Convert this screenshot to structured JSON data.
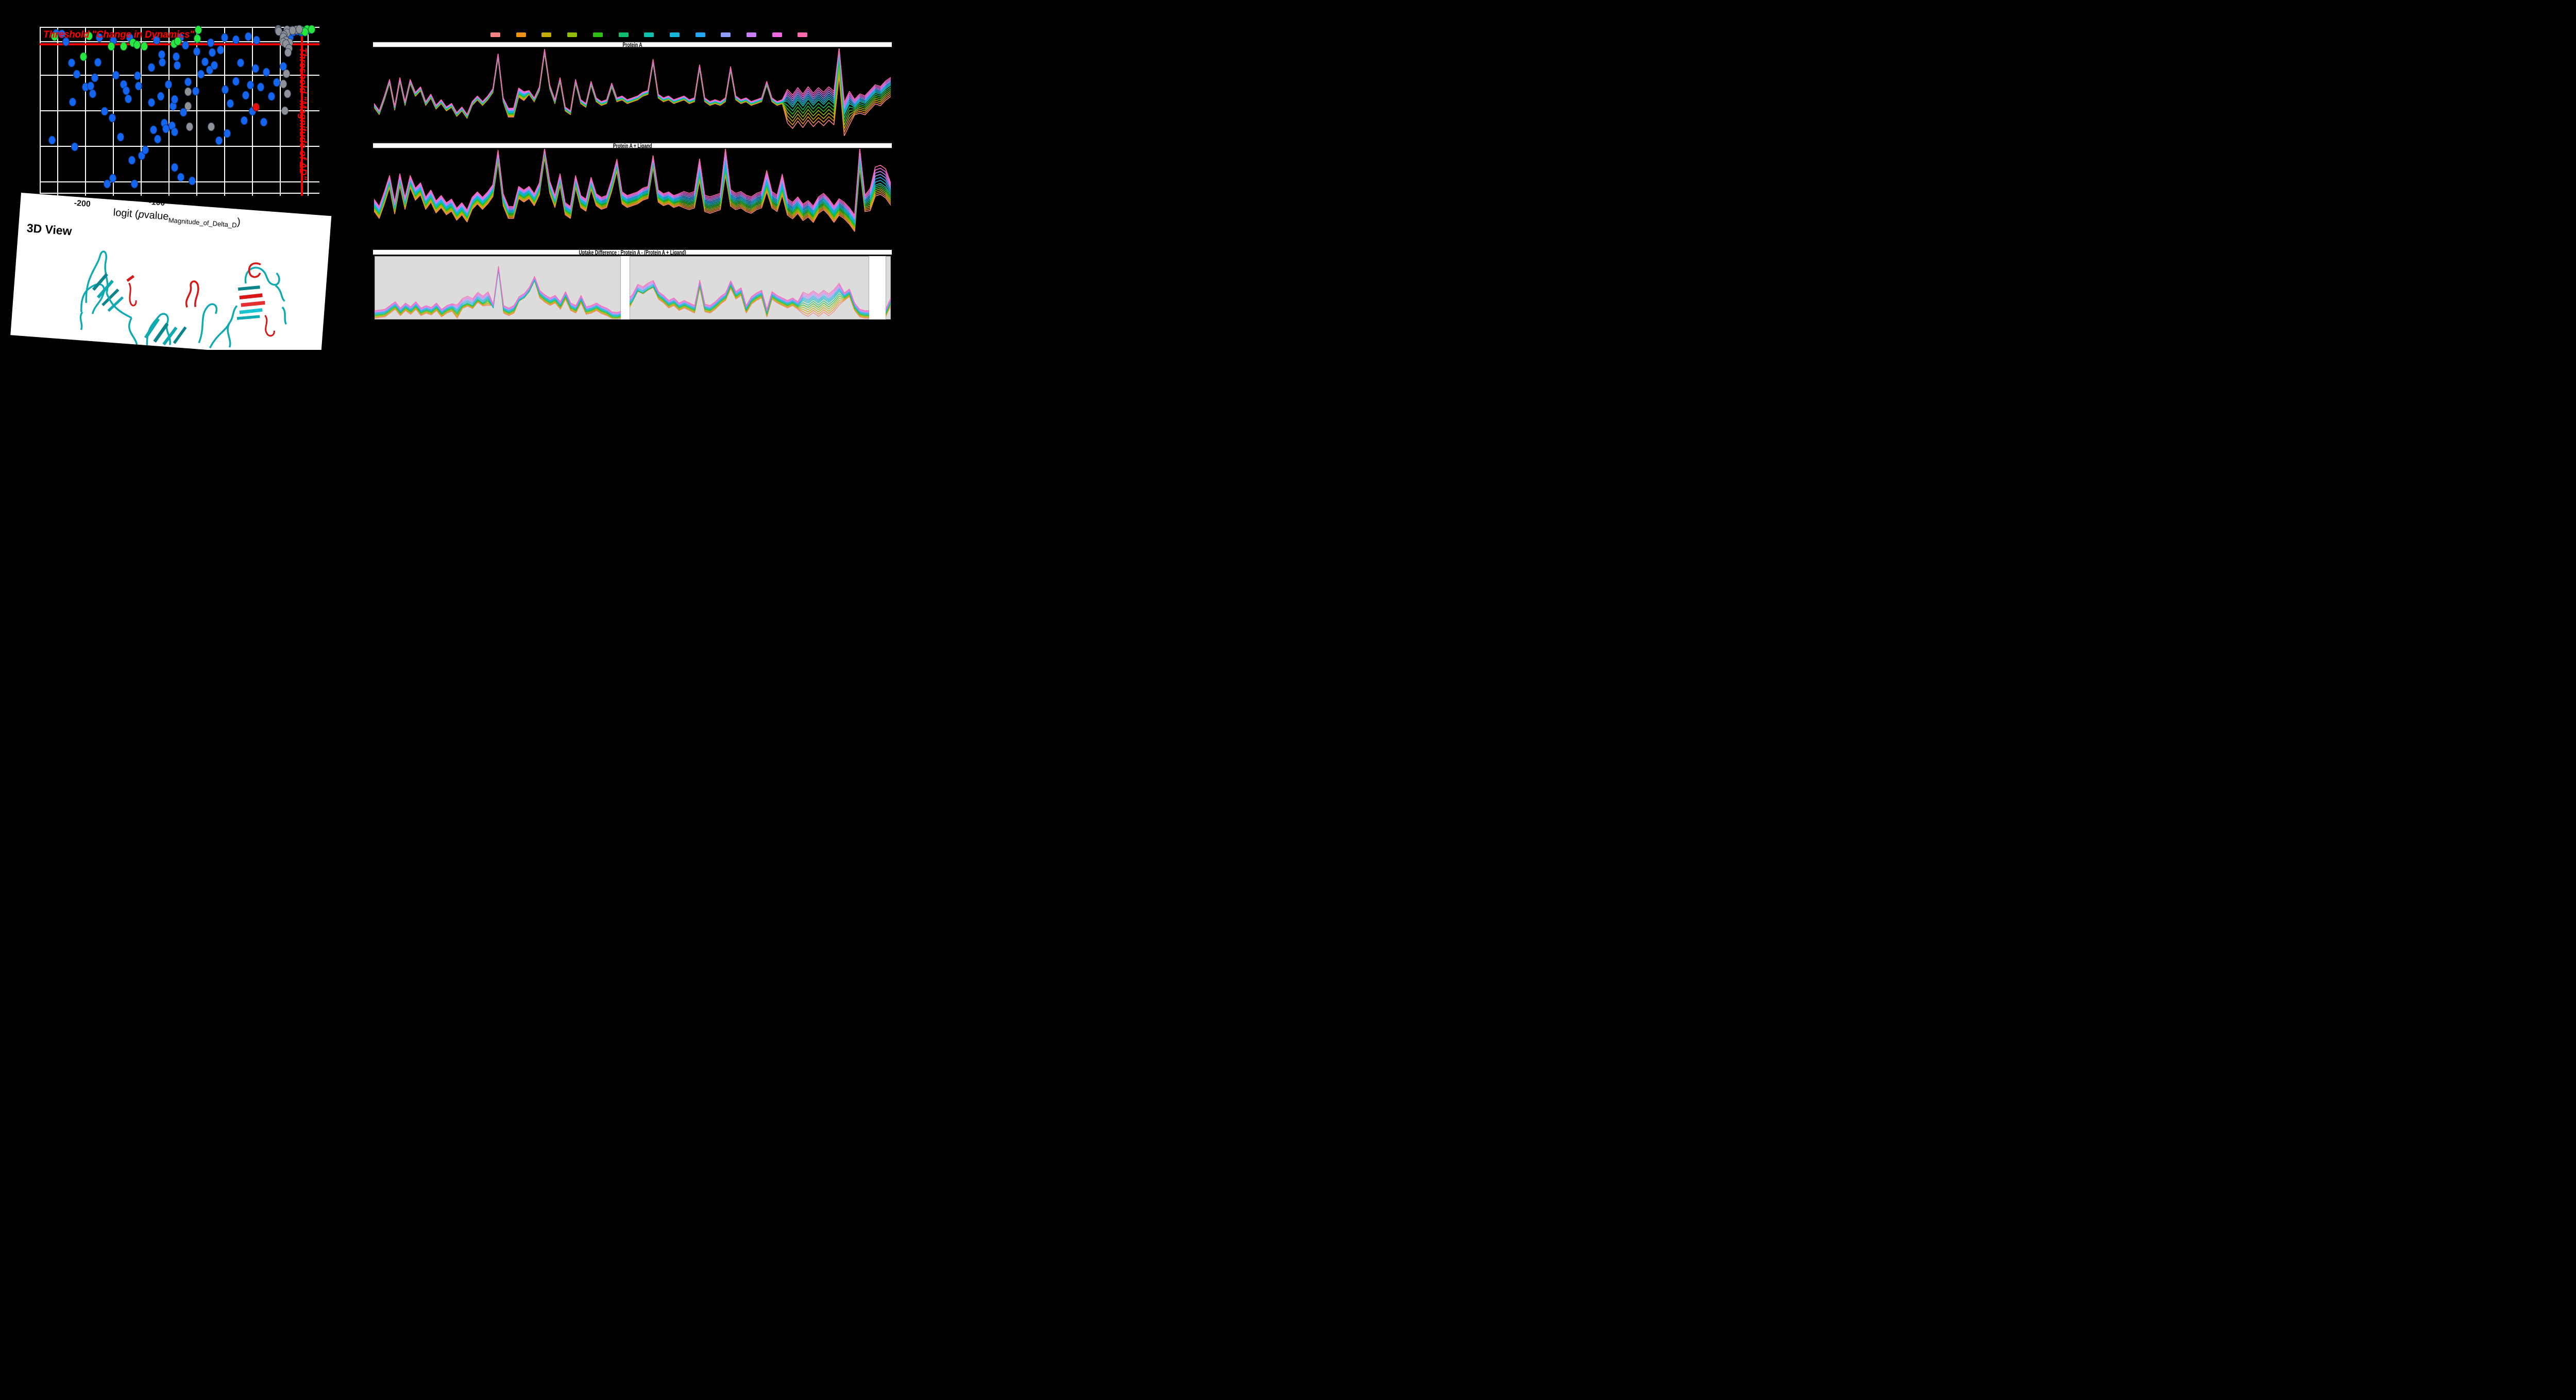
{
  "window": {
    "background": "#000000"
  },
  "card_3d": {
    "heading": "3D View",
    "structure_colors": {
      "ribbon": "#0FA9B2",
      "ribbon_dark": "#0B858C",
      "ribbon_light": "#19C3CF",
      "highlight": "#D81717"
    }
  },
  "legend": {
    "swatch_colors": [
      "#F2827F",
      "#EC9214",
      "#C3A909",
      "#93BD0D",
      "#2EC016",
      "#12BD70",
      "#0FBFAD",
      "#16B8D9",
      "#23A7F2",
      "#8E9FF7",
      "#C780F5",
      "#EF68E0",
      "#F969AE"
    ]
  },
  "chart_data": [
    {
      "id": "volcano",
      "type": "scatter",
      "xlabel_parts": {
        "pre": "logit (",
        "p": "p",
        "value": "value",
        "sub": "Magnitude_of_Delta_D",
        "post": ")"
      },
      "x_tick_labels": [
        "-200",
        "-100"
      ],
      "annotations": [
        {
          "text": "Threshold \"Change in Dynamics\"",
          "orientation": "horizontal"
        },
        {
          "text": "Threshold \"Magnitude of ΔD\"",
          "orientation": "vertical"
        }
      ],
      "threshold_color": "#FF0000",
      "grid_color": "#FFFFFF",
      "plot_background": "#000000",
      "red_hline_y": 0.101,
      "red_vline_x": 0.938,
      "grid_x": [
        0.061,
        0.161,
        0.261,
        0.361,
        0.461,
        0.56,
        0.66,
        0.76,
        0.86,
        0.96
      ],
      "grid_y": [
        0.084,
        0.286,
        0.502,
        0.718,
        0.934
      ],
      "note": "point coords are fractions of the plot area, x left-to-right, y top-to-bottom",
      "series": [
        {
          "name": "blue",
          "color": "#1465F0",
          "points": [
            [
              0.056,
              0.033
            ],
            [
              0.075,
              0.038
            ],
            [
              0.09,
              0.083
            ],
            [
              0.041,
              0.68
            ],
            [
              0.115,
              0.451
            ],
            [
              0.122,
              0.721
            ],
            [
              0.11,
              0.212
            ],
            [
              0.13,
              0.28
            ],
            [
              0.16,
              0.359
            ],
            [
              0.179,
              0.352
            ],
            [
              0.187,
              0.4
            ],
            [
              0.195,
              0.304
            ],
            [
              0.206,
              0.208
            ],
            [
              0.21,
              0.06
            ],
            [
              0.23,
              0.505
            ],
            [
              0.239,
              0.948
            ],
            [
              0.257,
              0.547
            ],
            [
              0.259,
              0.913
            ],
            [
              0.26,
              0.078
            ],
            [
              0.269,
              0.289
            ],
            [
              0.286,
              0.662
            ],
            [
              0.298,
              0.344
            ],
            [
              0.306,
              0.38
            ],
            [
              0.314,
              0.431
            ],
            [
              0.32,
              0.06
            ],
            [
              0.328,
              0.803
            ],
            [
              0.336,
              0.947
            ],
            [
              0.348,
              0.292
            ],
            [
              0.351,
              0.352
            ],
            [
              0.362,
              0.776
            ],
            [
              0.376,
              0.74
            ],
            [
              0.397,
              0.24
            ],
            [
              0.397,
              0.454
            ],
            [
              0.404,
              0.619
            ],
            [
              0.415,
              0.075
            ],
            [
              0.42,
              0.676
            ],
            [
              0.43,
              0.416
            ],
            [
              0.434,
              0.164
            ],
            [
              0.436,
              0.208
            ],
            [
              0.443,
              0.578
            ],
            [
              0.45,
              0.612
            ],
            [
              0.459,
              0.344
            ],
            [
              0.471,
              0.593
            ],
            [
              0.475,
              0.476
            ],
            [
              0.481,
              0.434
            ],
            [
              0.481,
              0.632
            ],
            [
              0.481,
              0.846
            ],
            [
              0.487,
              0.176
            ],
            [
              0.49,
              0.228
            ],
            [
              0.5,
              0.059
            ],
            [
              0.502,
              0.907
            ],
            [
              0.512,
              0.512
            ],
            [
              0.52,
              0.106
            ],
            [
              0.529,
              0.328
            ],
            [
              0.544,
              0.927
            ],
            [
              0.557,
              0.384
            ],
            [
              0.56,
              0.145
            ],
            [
              0.574,
              0.281
            ],
            [
              0.59,
              0.207
            ],
            [
              0.607,
              0.256
            ],
            [
              0.61,
              0.09
            ],
            [
              0.615,
              0.15
            ],
            [
              0.623,
              0.228
            ],
            [
              0.64,
              0.685
            ],
            [
              0.645,
              0.134
            ],
            [
              0.66,
              0.06
            ],
            [
              0.662,
              0.375
            ],
            [
              0.67,
              0.64
            ],
            [
              0.68,
              0.46
            ],
            [
              0.7,
              0.073
            ],
            [
              0.7,
              0.325
            ],
            [
              0.718,
              0.212
            ],
            [
              0.73,
              0.561
            ],
            [
              0.735,
              0.409
            ],
            [
              0.745,
              0.054
            ],
            [
              0.752,
              0.347
            ],
            [
              0.76,
              0.505
            ],
            [
              0.77,
              0.246
            ],
            [
              0.775,
              0.075
            ],
            [
              0.79,
              0.359
            ],
            [
              0.8,
              0.572
            ],
            [
              0.81,
              0.269
            ],
            [
              0.828,
              0.415
            ],
            [
              0.846,
              0.331
            ],
            [
              0.87,
              0.235
            ],
            [
              0.895,
              0.059
            ],
            [
              0.905,
              0.024
            ],
            [
              0.92,
              0.018
            ],
            [
              0.935,
              0.026
            ],
            [
              0.945,
              0.02
            ],
            [
              0.96,
              0.014
            ]
          ]
        },
        {
          "name": "green",
          "color": "#27E83F",
          "points": [
            [
              0.05,
              0.054
            ],
            [
              0.154,
              0.176
            ],
            [
              0.173,
              0.05
            ],
            [
              0.253,
              0.112
            ],
            [
              0.298,
              0.112
            ],
            [
              0.331,
              0.091
            ],
            [
              0.345,
              0.103
            ],
            [
              0.372,
              0.112
            ],
            [
              0.479,
              0.097
            ],
            [
              0.491,
              0.081
            ],
            [
              0.561,
              0.065
            ],
            [
              0.566,
              0.013
            ],
            [
              0.935,
              0.015
            ],
            [
              0.955,
              0.01
            ],
            [
              0.948,
              0.026
            ],
            [
              0.972,
              0.009
            ]
          ]
        },
        {
          "name": "gray",
          "color": "#8E9196",
          "points": [
            [
              0.852,
              0.009
            ],
            [
              0.852,
              0.015
            ],
            [
              0.854,
              0.021
            ],
            [
              0.883,
              0.011
            ],
            [
              0.883,
              0.031
            ],
            [
              0.872,
              0.043
            ],
            [
              0.87,
              0.056
            ],
            [
              0.88,
              0.078
            ],
            [
              0.87,
              0.089
            ],
            [
              0.893,
              0.092
            ],
            [
              0.88,
              0.097
            ],
            [
              0.891,
              0.125
            ],
            [
              0.888,
              0.15
            ],
            [
              0.881,
              0.279
            ],
            [
              0.87,
              0.34
            ],
            [
              0.885,
              0.4
            ],
            [
              0.877,
              0.502
            ],
            [
              0.529,
              0.388
            ],
            [
              0.529,
              0.476
            ],
            [
              0.535,
              0.601
            ],
            [
              0.611,
              0.601
            ],
            [
              0.916,
              0.011
            ],
            [
              0.928,
              0.008
            ],
            [
              0.904,
              0.015
            ]
          ]
        },
        {
          "name": "red",
          "color": "#E3100B",
          "points": [
            [
              0.773,
              0.481
            ]
          ]
        }
      ]
    },
    {
      "id": "uptake-protein-a",
      "type": "line",
      "title": "Protein A",
      "plot_background": "#000000",
      "x_range": [
        0,
        100
      ],
      "axes_visible": false,
      "line_width": 1.6,
      "line_opacity": 1,
      "vmin": 0.02,
      "vmax": 1.0,
      "base": [
        0.38,
        0.3,
        0.46,
        0.64,
        0.35,
        0.66,
        0.4,
        0.64,
        0.5,
        0.56,
        0.4,
        0.48,
        0.36,
        0.42,
        0.34,
        0.38,
        0.28,
        0.34,
        0.26,
        0.4,
        0.46,
        0.4,
        0.46,
        0.54,
        0.92,
        0.44,
        0.3,
        0.3,
        0.52,
        0.48,
        0.52,
        0.44,
        0.56,
        0.97,
        0.58,
        0.42,
        0.66,
        0.34,
        0.3,
        0.64,
        0.42,
        0.38,
        0.62,
        0.44,
        0.4,
        0.42,
        0.6,
        0.44,
        0.46,
        0.42,
        0.44,
        0.46,
        0.5,
        0.52,
        0.86,
        0.48,
        0.44,
        0.46,
        0.42,
        0.44,
        0.46,
        0.42,
        0.44,
        0.8,
        0.44,
        0.4,
        0.42,
        0.4,
        0.44,
        0.78,
        0.46,
        0.42,
        0.44,
        0.4,
        0.42,
        0.44,
        0.62,
        0.44,
        0.4,
        0.42,
        0.42,
        0.36,
        0.44,
        0.37,
        0.45,
        0.38,
        0.44,
        0.39,
        0.45,
        0.4,
        0.93,
        0.28,
        0.4,
        0.36,
        0.42,
        0.4,
        0.46,
        0.52,
        0.5,
        0.56,
        0.6
      ],
      "spread_default": 0.0035,
      "spread_regions": [
        [
          26,
          29,
          0.008
        ],
        [
          80,
          92,
          0.022
        ],
        [
          93,
          100,
          0.014
        ]
      ],
      "top_boost_regions": [],
      "bottom_boost_regions": [
        [
          80,
          92,
          -0.1
        ],
        [
          94,
          100,
          -0.04
        ]
      ]
    },
    {
      "id": "uptake-protein-a-ligand",
      "type": "line",
      "title": "Protein A + Ligand",
      "plot_background": "#000000",
      "x_range": [
        0,
        100
      ],
      "axes_visible": false,
      "line_width": 1.6,
      "line_opacity": 1,
      "vmin": 0.02,
      "vmax": 1.0,
      "base": [
        0.38,
        0.3,
        0.46,
        0.64,
        0.35,
        0.66,
        0.4,
        0.64,
        0.5,
        0.56,
        0.4,
        0.48,
        0.36,
        0.42,
        0.34,
        0.38,
        0.28,
        0.34,
        0.26,
        0.4,
        0.46,
        0.4,
        0.46,
        0.54,
        0.92,
        0.44,
        0.3,
        0.3,
        0.52,
        0.48,
        0.52,
        0.44,
        0.56,
        0.97,
        0.58,
        0.42,
        0.66,
        0.34,
        0.3,
        0.64,
        0.42,
        0.38,
        0.62,
        0.44,
        0.4,
        0.42,
        0.6,
        0.82,
        0.46,
        0.42,
        0.44,
        0.46,
        0.5,
        0.52,
        0.86,
        0.48,
        0.44,
        0.46,
        0.42,
        0.44,
        0.44,
        0.42,
        0.44,
        0.74,
        0.4,
        0.38,
        0.4,
        0.42,
        0.8,
        0.46,
        0.42,
        0.44,
        0.4,
        0.38,
        0.42,
        0.44,
        0.62,
        0.44,
        0.4,
        0.58,
        0.36,
        0.32,
        0.38,
        0.3,
        0.34,
        0.28,
        0.38,
        0.42,
        0.36,
        0.28,
        0.36,
        0.32,
        0.26,
        0.18,
        0.88,
        0.4,
        0.44,
        0.6,
        0.62,
        0.58,
        0.5
      ],
      "spread_default": 0.011,
      "spread_regions": [
        [
          60,
          100,
          0.015
        ],
        [
          96,
          100,
          0.02
        ]
      ],
      "top_boost_regions": [
        [
          63,
          63,
          0.06
        ],
        [
          68,
          68,
          0.16
        ],
        [
          76,
          76,
          0.05
        ],
        [
          79,
          79,
          0.05
        ],
        [
          94,
          94,
          0.1
        ],
        [
          97,
          99,
          0.08
        ]
      ],
      "bottom_boost_regions": []
    },
    {
      "id": "uptake-difference",
      "type": "line",
      "title": "Uptake Difference : Protein A - (Protein A + Ligand)",
      "plot_background": "#DCDCDC",
      "x_range": [
        0,
        100
      ],
      "axes_visible": false,
      "line_width": 1.4,
      "line_opacity": 0.8,
      "vmin": 0.02,
      "vmax": 0.98,
      "coverage_gaps": [
        [
          0.477,
          0.494
        ],
        [
          0.958,
          0.99
        ]
      ],
      "base": [
        0.08,
        0.09,
        0.1,
        0.16,
        0.22,
        0.12,
        0.2,
        0.14,
        0.22,
        0.12,
        0.16,
        0.13,
        0.2,
        0.1,
        0.16,
        0.19,
        0.12,
        0.22,
        0.26,
        0.22,
        0.32,
        0.26,
        0.33,
        0.18,
        0.78,
        0.16,
        0.12,
        0.16,
        0.3,
        0.35,
        0.45,
        0.62,
        0.4,
        0.33,
        0.28,
        0.32,
        0.22,
        0.38,
        0.2,
        0.16,
        0.32,
        0.14,
        0.16,
        0.2,
        0.15,
        0.12,
        0.06,
        0.05,
        0.08,
        0.22,
        0.3,
        0.46,
        0.42,
        0.48,
        0.52,
        0.38,
        0.32,
        0.24,
        0.28,
        0.2,
        0.24,
        0.2,
        0.16,
        0.56,
        0.18,
        0.16,
        0.22,
        0.3,
        0.36,
        0.55,
        0.38,
        0.44,
        0.16,
        0.3,
        0.36,
        0.4,
        0.1,
        0.38,
        0.32,
        0.28,
        0.24,
        0.28,
        0.22,
        0.3,
        0.26,
        0.32,
        0.26,
        0.33,
        0.27,
        0.34,
        0.44,
        0.36,
        0.42,
        0.2,
        0.1,
        0.08,
        0.08,
        0.06,
        0.07,
        0.1,
        0.28
      ],
      "spread_default": 0.01,
      "spread_regions": [
        [
          16,
          22,
          0.018
        ],
        [
          49,
          54,
          0.016
        ],
        [
          83,
          90,
          0.022
        ]
      ],
      "top_boost_regions": [],
      "bottom_boost_regions": [
        [
          17,
          21,
          0.06
        ],
        [
          23,
          24,
          0.1
        ],
        [
          28,
          31,
          0.05
        ],
        [
          50,
          54,
          0.08
        ],
        [
          83,
          90,
          -0.08
        ]
      ]
    }
  ]
}
